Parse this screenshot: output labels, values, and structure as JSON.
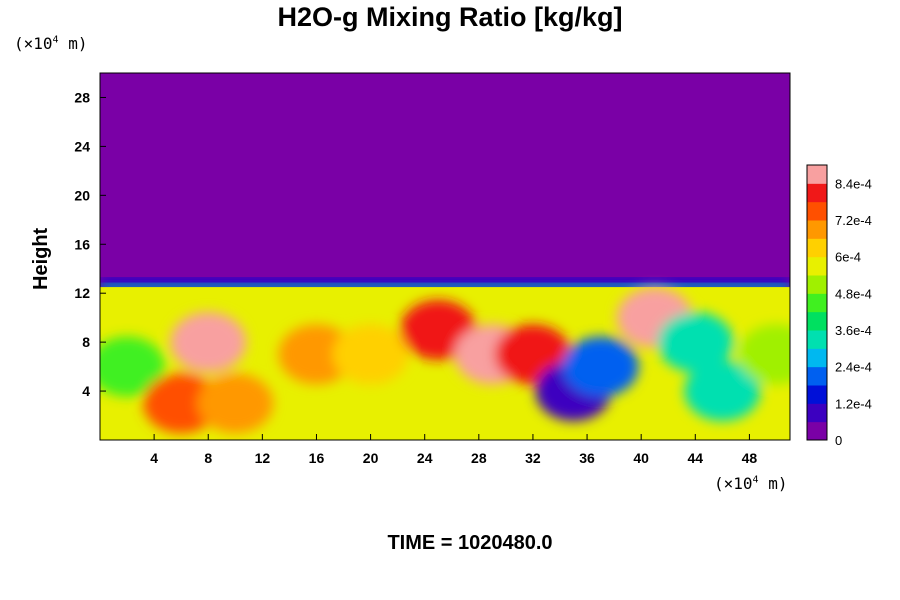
{
  "chart_data": {
    "type": "heatmap",
    "title": "H2O-g Mixing Ratio [kg/kg]",
    "ylabel": "Height",
    "y_unit": {
      "prefix": "(×10",
      "exp": "4",
      "suffix": " m)"
    },
    "x_unit": {
      "prefix": "(×10",
      "exp": "4",
      "suffix": " m)"
    },
    "xlim": [
      0,
      51
    ],
    "ylim": [
      0,
      30
    ],
    "x_ticks": [
      4,
      8,
      12,
      16,
      20,
      24,
      28,
      32,
      36,
      40,
      44,
      48
    ],
    "y_ticks": [
      4,
      8,
      12,
      16,
      20,
      24,
      28
    ],
    "colorbar": {
      "range": [
        0,
        0.0009
      ],
      "tick_values": [
        0,
        0.00012,
        0.00024,
        0.00036,
        0.00048,
        0.0006,
        0.00072,
        0.00084
      ],
      "tick_labels": [
        "0",
        "1.2e-4",
        "2.4e-4",
        "3.6e-4",
        "4.8e-4",
        "6e-4",
        "7.2e-4",
        "8.4e-4"
      ],
      "colors": [
        "#7a00a6",
        "#3c00c0",
        "#0010d8",
        "#0060f0",
        "#00b8f0",
        "#00e0b0",
        "#00e060",
        "#40f020",
        "#a0f000",
        "#e8f000",
        "#ffd000",
        "#ff9800",
        "#ff5000",
        "#f01818",
        "#f8a0a0"
      ]
    },
    "field": {
      "background": 0.0,
      "moist_layer_top": 12.5,
      "features": [
        {
          "x": 2,
          "y": 6,
          "value": 0.00045
        },
        {
          "x": 6,
          "y": 3,
          "value": 0.00075
        },
        {
          "x": 8,
          "y": 8,
          "value": 0.00085
        },
        {
          "x": 10,
          "y": 3,
          "value": 0.0007
        },
        {
          "x": 16,
          "y": 7,
          "value": 0.00068
        },
        {
          "x": 20,
          "y": 7,
          "value": 0.00065
        },
        {
          "x": 25,
          "y": 9,
          "value": 0.0008
        },
        {
          "x": 29,
          "y": 7,
          "value": 0.00088
        },
        {
          "x": 32,
          "y": 7,
          "value": 0.0008
        },
        {
          "x": 35,
          "y": 4,
          "value": 0.0001
        },
        {
          "x": 37,
          "y": 6,
          "value": 0.0002
        },
        {
          "x": 41,
          "y": 10,
          "value": 0.0009
        },
        {
          "x": 44,
          "y": 8,
          "value": 0.0003
        },
        {
          "x": 46,
          "y": 4,
          "value": 0.00035
        },
        {
          "x": 50,
          "y": 7,
          "value": 0.0005
        }
      ]
    }
  },
  "footer": {
    "time_label": "TIME = 1020480.0"
  }
}
